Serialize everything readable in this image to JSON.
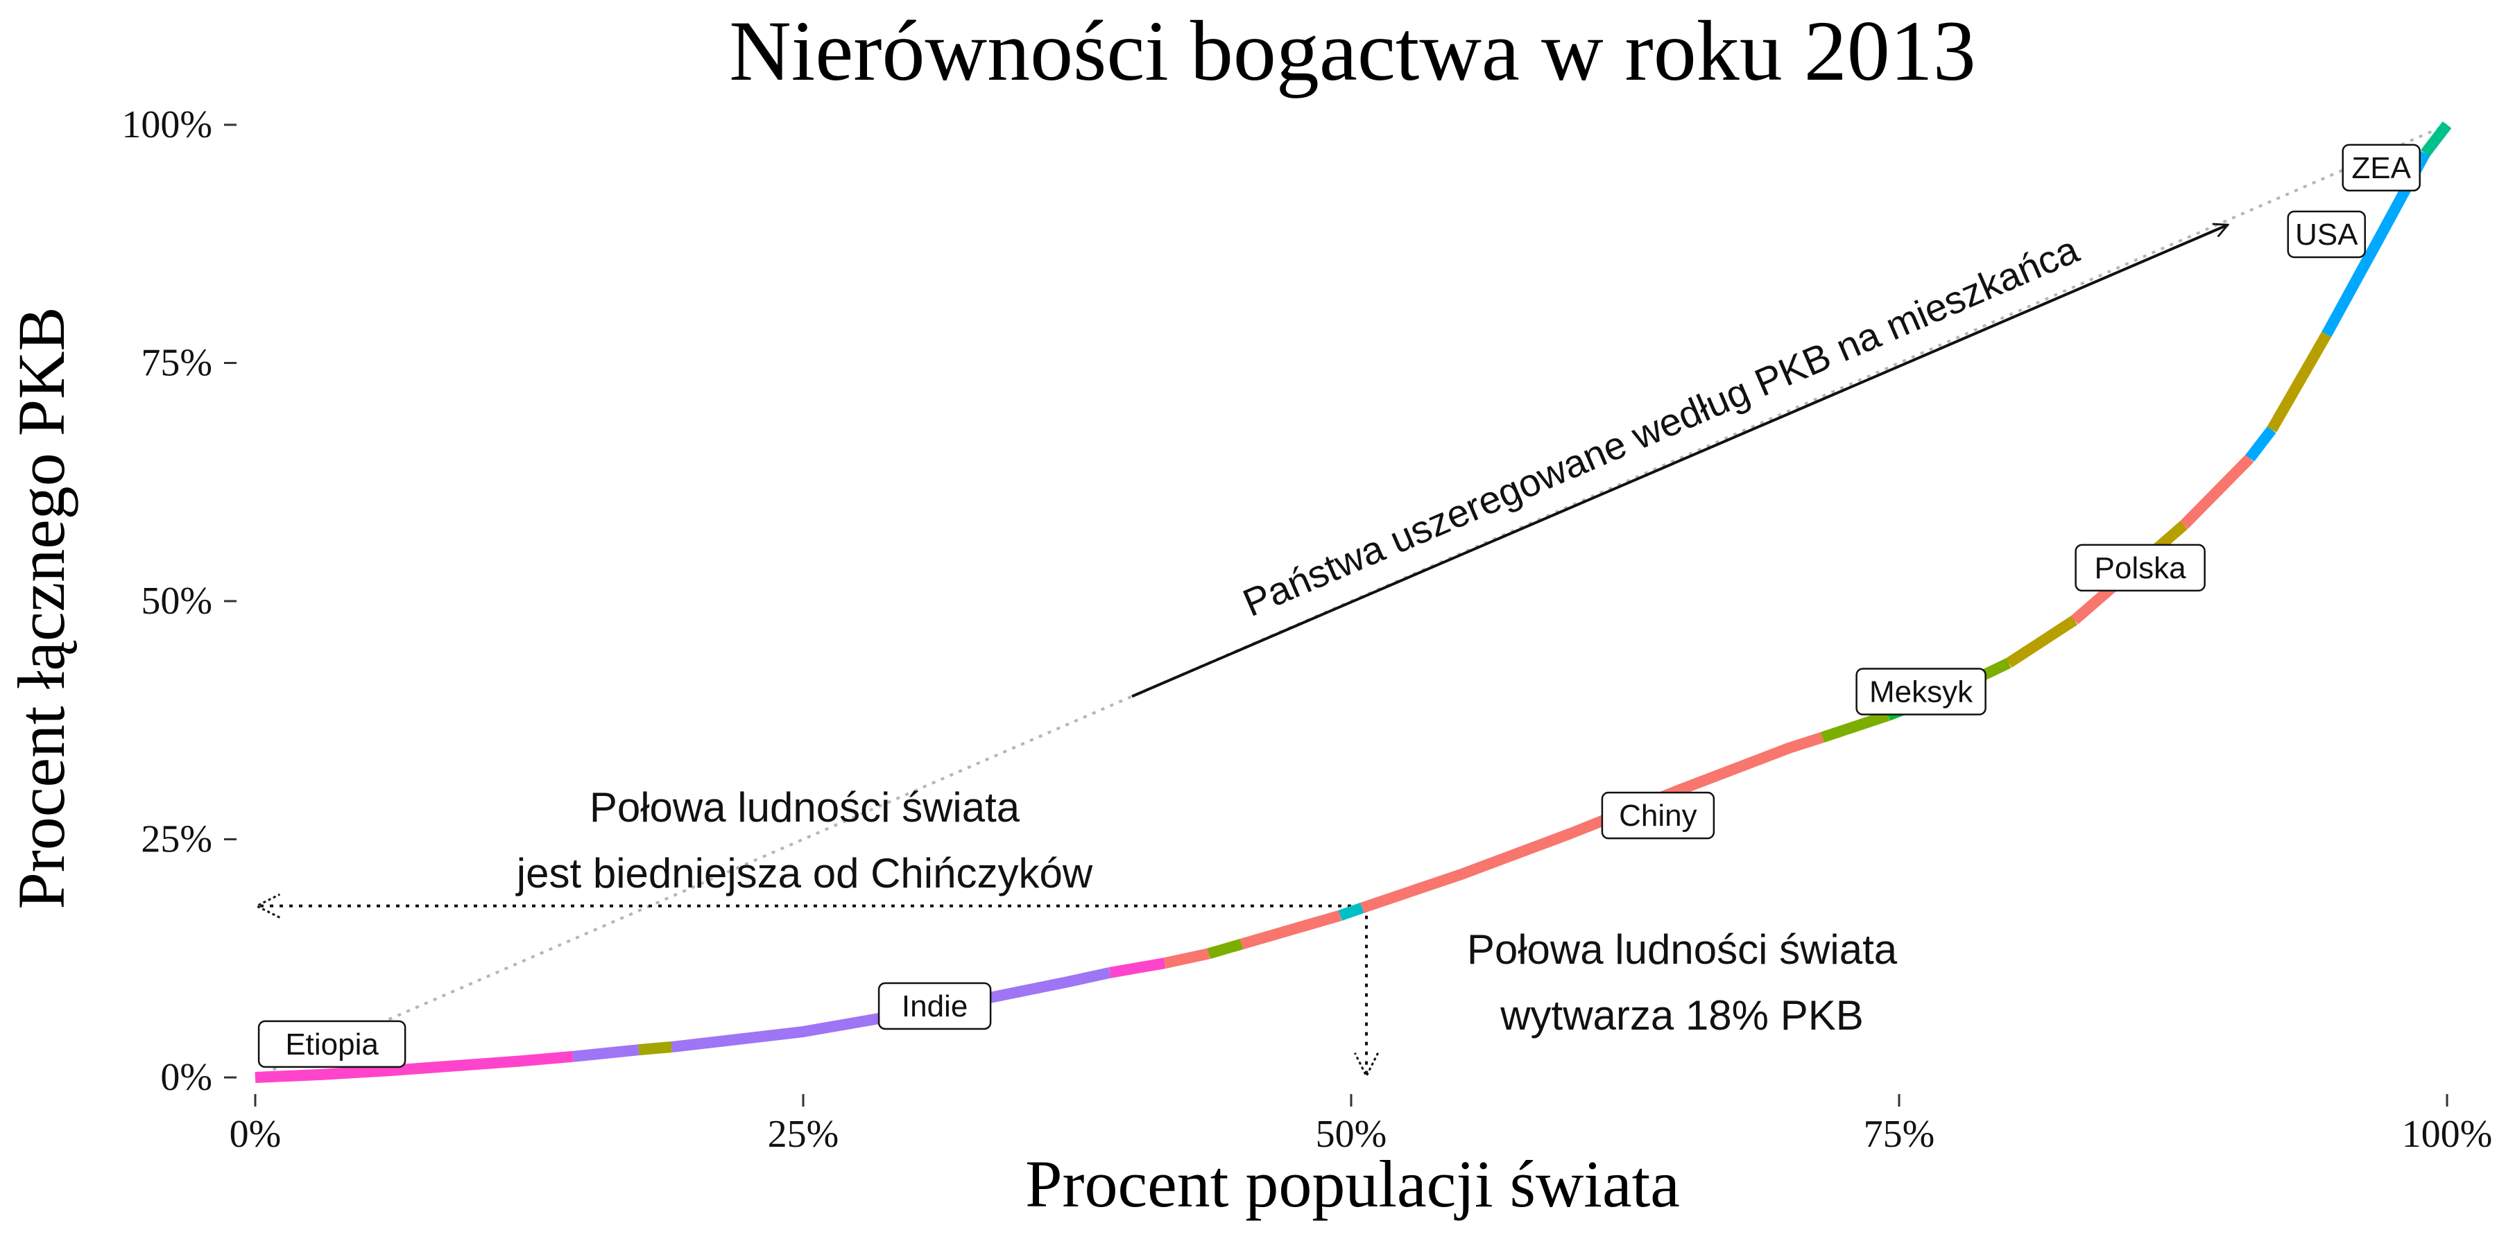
{
  "chart_data": {
    "type": "line",
    "title": "Nierówności bogactwa w roku 2013",
    "xlabel": "Procent populacji świata",
    "ylabel": "Procent łącznego PKB",
    "xlim": [
      0,
      100
    ],
    "ylim": [
      0,
      100
    ],
    "x_ticks": [
      {
        "value": 0,
        "label": "0%"
      },
      {
        "value": 25,
        "label": "25%"
      },
      {
        "value": 50,
        "label": "50%"
      },
      {
        "value": 75,
        "label": "75%"
      },
      {
        "value": 100,
        "label": "100%"
      }
    ],
    "y_ticks": [
      {
        "value": 0,
        "label": "0%"
      },
      {
        "value": 25,
        "label": "25%"
      },
      {
        "value": 50,
        "label": "50%"
      },
      {
        "value": 75,
        "label": "75%"
      },
      {
        "value": 100,
        "label": "100%"
      }
    ],
    "grid": false,
    "legend": "none",
    "curve_segments": [
      {
        "x": [
          0,
          3,
          6,
          9,
          12,
          14.5
        ],
        "y": [
          0,
          0.3,
          0.7,
          1.2,
          1.7,
          2.2
        ],
        "color": "#ff44cc"
      },
      {
        "x": [
          14.5,
          17.5
        ],
        "y": [
          2.2,
          2.9
        ],
        "color": "#9d75f5"
      },
      {
        "x": [
          17.5,
          19
        ],
        "y": [
          2.9,
          3.2
        ],
        "color": "#a3a500"
      },
      {
        "x": [
          19,
          25,
          31,
          37,
          39
        ],
        "y": [
          3.2,
          4.8,
          7.2,
          10.0,
          11.0
        ],
        "color": "#9d75f5"
      },
      {
        "x": [
          39,
          41.5
        ],
        "y": [
          11.0,
          12.0
        ],
        "color": "#ff44cc"
      },
      {
        "x": [
          41.5,
          43.5
        ],
        "y": [
          12.0,
          13.0
        ],
        "color": "#f8766d"
      },
      {
        "x": [
          43.5,
          45
        ],
        "y": [
          13.0,
          14.0
        ],
        "color": "#7cae00"
      },
      {
        "x": [
          45,
          49.5
        ],
        "y": [
          14.0,
          17.0
        ],
        "color": "#f8766d"
      },
      {
        "x": [
          49.5,
          50.5
        ],
        "y": [
          17.0,
          17.8
        ],
        "color": "#00bfc4"
      },
      {
        "x": [
          50.5,
          55,
          60,
          65,
          70,
          71.5
        ],
        "y": [
          17.8,
          21.3,
          25.6,
          30.2,
          34.6,
          35.7
        ],
        "color": "#f8766d"
      },
      {
        "x": [
          71.5,
          74.5
        ],
        "y": [
          35.7,
          38.0
        ],
        "color": "#7cae00"
      },
      {
        "x": [
          74.5,
          77
        ],
        "y": [
          38.0,
          40.2
        ],
        "color": "#00ba38"
      },
      {
        "x": [
          77,
          80
        ],
        "y": [
          40.2,
          43.5
        ],
        "color": "#7cae00"
      },
      {
        "x": [
          80,
          83
        ],
        "y": [
          43.5,
          48.0
        ],
        "color": "#b79f00"
      },
      {
        "x": [
          83,
          85
        ],
        "y": [
          48.0,
          52.0
        ],
        "color": "#f8766d"
      },
      {
        "x": [
          85,
          88
        ],
        "y": [
          52.0,
          58.0
        ],
        "color": "#b79f00"
      },
      {
        "x": [
          88,
          91
        ],
        "y": [
          58.0,
          65.0
        ],
        "color": "#f8766d"
      },
      {
        "x": [
          91,
          92
        ],
        "y": [
          65.0,
          68.0
        ],
        "color": "#00a9ff"
      },
      {
        "x": [
          92,
          94.5
        ],
        "y": [
          68.0,
          78.0
        ],
        "color": "#b79f00"
      },
      {
        "x": [
          94.5,
          97,
          99
        ],
        "y": [
          78.0,
          88.5,
          97.0
        ],
        "color": "#00a9ff"
      },
      {
        "x": [
          99,
          100
        ],
        "y": [
          97.0,
          100
        ],
        "color": "#00c08b"
      }
    ],
    "country_labels": [
      {
        "text": "Etiopia",
        "x": 3.5,
        "y": 1.0,
        "label_x": 3.5,
        "label_y": 3.5
      },
      {
        "text": "Indie",
        "x": 31,
        "y": 7.5,
        "label_x": 31,
        "label_y": 7.5
      },
      {
        "text": "Chiny",
        "x": 62,
        "y": 27.5,
        "label_x": 64,
        "label_y": 27.5
      },
      {
        "text": "Meksyk",
        "x": 76,
        "y": 40,
        "label_x": 76,
        "label_y": 40.5
      },
      {
        "text": "Polska",
        "x": 86,
        "y": 53.5,
        "label_x": 86,
        "label_y": 53.5
      },
      {
        "text": "USA",
        "x": 96.5,
        "y": 88,
        "label_x": 94.5,
        "label_y": 88.5
      },
      {
        "text": "ZEA",
        "x": 99,
        "y": 96,
        "label_x": 97,
        "label_y": 95.5
      }
    ],
    "annotations": {
      "rank_arrow_text": "Państwa uszeregowane według PKB na mieszkańca",
      "left_line1": "Połowa ludności świata",
      "left_line2": "jest biedniejsza od Chińczyków",
      "right_line1": "Połowa ludności świata",
      "right_line2": "wytwarza 18% PKB"
    },
    "half_point": {
      "x": 50,
      "y": 18
    },
    "rank_arrow": {
      "from": [
        40,
        40
      ],
      "to": [
        90,
        89.5
      ]
    },
    "dotted_guide": {
      "from": [
        0,
        0
      ],
      "to": [
        100,
        100
      ]
    }
  }
}
